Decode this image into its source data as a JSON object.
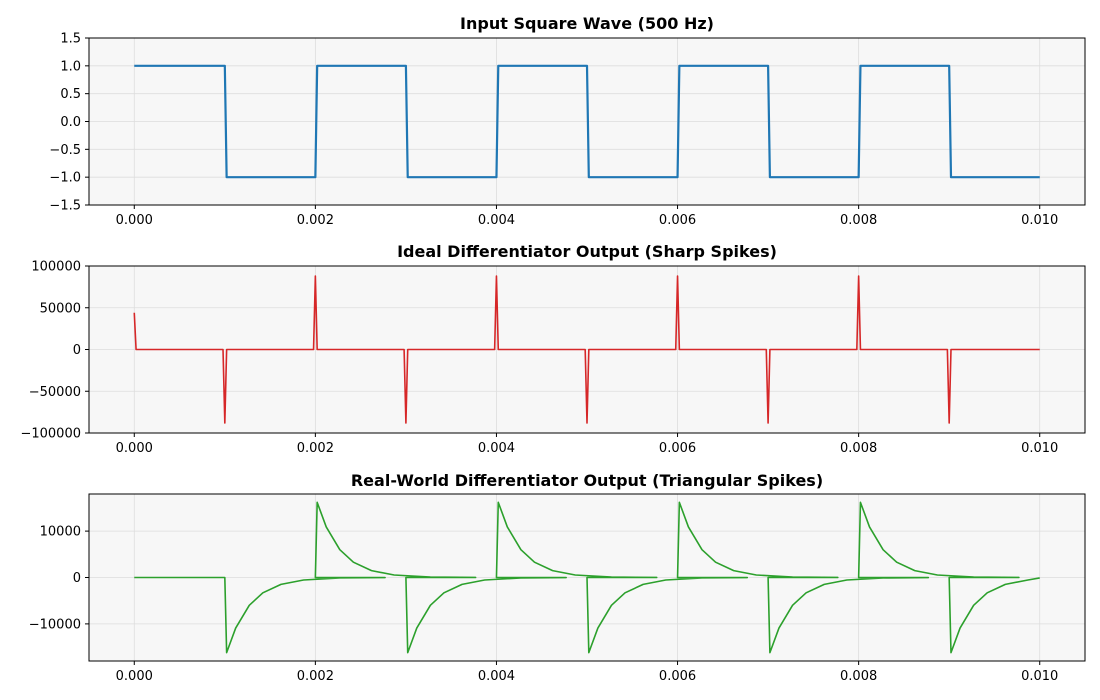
{
  "figure": {
    "background": "#ffffff",
    "plot_background": "#f7f7f7",
    "grid_color": "#dddddd"
  },
  "chart_data": [
    {
      "type": "line",
      "title": "Input Square Wave (500 Hz)",
      "xlabel": "",
      "ylabel": "",
      "color": "#1f77b4",
      "xlim": [
        -0.0005,
        0.0105
      ],
      "ylim": [
        -1.5,
        1.5
      ],
      "xticks": [
        0,
        0.002,
        0.004,
        0.006,
        0.008,
        0.01
      ],
      "xtick_labels": [
        "0.000",
        "0.002",
        "0.004",
        "0.006",
        "0.008",
        "0.010"
      ],
      "yticks": [
        1.5,
        1.0,
        0.5,
        0.0,
        -0.5,
        -1.0,
        -1.5
      ],
      "ytick_labels": [
        "1.5",
        "1.0",
        "0.5",
        "0.0",
        "−0.5",
        "−1.0",
        "−1.5"
      ],
      "grid": true,
      "series": [
        {
          "x": [
            0,
            0.001,
            0.00102,
            0.002,
            0.00202,
            0.003,
            0.00302,
            0.004,
            0.00402,
            0.005,
            0.00502,
            0.006,
            0.00602,
            0.007,
            0.00702,
            0.008,
            0.00802,
            0.009,
            0.00902,
            0.01
          ],
          "y": [
            1,
            1,
            -1,
            -1,
            1,
            1,
            -1,
            -1,
            1,
            1,
            -1,
            -1,
            1,
            1,
            -1,
            -1,
            1,
            1,
            -1,
            -1
          ]
        }
      ]
    },
    {
      "type": "line",
      "title": "Ideal Differentiator Output (Sharp Spikes)",
      "xlabel": "",
      "ylabel": "",
      "color": "#d62728",
      "xlim": [
        -0.0005,
        0.0105
      ],
      "ylim": [
        -100000,
        100000
      ],
      "xticks": [
        0,
        0.002,
        0.004,
        0.006,
        0.008,
        0.01
      ],
      "xtick_labels": [
        "0.000",
        "0.002",
        "0.004",
        "0.006",
        "0.008",
        "0.010"
      ],
      "yticks": [
        100000,
        50000,
        0,
        -50000,
        -100000
      ],
      "ytick_labels": [
        "100000",
        "50000",
        "0",
        "−50000",
        "−100000"
      ],
      "grid": true,
      "series": [
        {
          "x": [
            0,
            2e-05,
            0.00098,
            0.001,
            0.00102,
            0.00198,
            0.002,
            0.00202,
            0.00298,
            0.003,
            0.00302,
            0.00398,
            0.004,
            0.00402,
            0.00498,
            0.005,
            0.00502,
            0.00598,
            0.006,
            0.00602,
            0.00698,
            0.007,
            0.00702,
            0.00798,
            0.008,
            0.00802,
            0.00898,
            0.009,
            0.00902,
            0.01
          ],
          "y": [
            44000,
            0,
            0,
            -88000,
            0,
            0,
            88000,
            0,
            0,
            -88000,
            0,
            0,
            88000,
            0,
            0,
            -88000,
            0,
            0,
            88000,
            0,
            0,
            -88000,
            0,
            0,
            88000,
            0,
            0,
            -88000,
            0,
            0
          ]
        }
      ]
    },
    {
      "type": "line",
      "title": "Real-World Differentiator Output (Triangular Spikes)",
      "xlabel": "",
      "ylabel": "",
      "color": "#2ca02c",
      "xlim": [
        -0.0005,
        0.0105
      ],
      "ylim": [
        -18000,
        18000
      ],
      "xticks": [
        0,
        0.002,
        0.004,
        0.006,
        0.008,
        0.01
      ],
      "xtick_labels": [
        "0.000",
        "0.002",
        "0.004",
        "0.006",
        "0.008",
        "0.010"
      ],
      "yticks": [
        10000,
        0,
        -10000
      ],
      "ytick_labels": [
        "10000",
        "0",
        "−10000"
      ],
      "grid": true,
      "series": [
        {
          "x": [
            0,
            0.001,
            0.00102,
            0.00112,
            0.00127,
            0.00142,
            0.00162,
            0.00187,
            0.00227,
            0.00277,
            0.002,
            0.00202,
            0.00212,
            0.00227,
            0.00242,
            0.00262,
            0.00287,
            0.00327,
            0.00377,
            0.003,
            0.00302,
            0.00312,
            0.00327,
            0.00342,
            0.00362,
            0.00387,
            0.00427,
            0.00477,
            0.004,
            0.00402,
            0.00412,
            0.00427,
            0.00442,
            0.00462,
            0.00487,
            0.00527,
            0.00577,
            0.005,
            0.00502,
            0.00512,
            0.00527,
            0.00542,
            0.00562,
            0.00587,
            0.00627,
            0.00677,
            0.006,
            0.00602,
            0.00612,
            0.00627,
            0.00642,
            0.00662,
            0.00687,
            0.00727,
            0.00777,
            0.007,
            0.00702,
            0.00712,
            0.00727,
            0.00742,
            0.00762,
            0.00787,
            0.00827,
            0.00877,
            0.008,
            0.00802,
            0.00812,
            0.00827,
            0.00842,
            0.00862,
            0.00887,
            0.00927,
            0.00977,
            0.009,
            0.00902,
            0.00912,
            0.00927,
            0.00942,
            0.00962,
            0.00987,
            0.01
          ],
          "y": [
            0,
            0,
            -16200,
            -10900,
            -6000,
            -3300,
            -1480,
            -540,
            -100,
            -10,
            0,
            16200,
            10900,
            6000,
            3300,
            1480,
            540,
            100,
            10,
            0,
            -16200,
            -10900,
            -6000,
            -3300,
            -1480,
            -540,
            -100,
            -10,
            0,
            16200,
            10900,
            6000,
            3300,
            1480,
            540,
            100,
            10,
            0,
            -16200,
            -10900,
            -6000,
            -3300,
            -1480,
            -540,
            -100,
            -10,
            0,
            16200,
            10900,
            6000,
            3300,
            1480,
            540,
            100,
            10,
            0,
            -16200,
            -10900,
            -6000,
            -3300,
            -1480,
            -540,
            -100,
            -10,
            0,
            16200,
            10900,
            6000,
            3300,
            1480,
            540,
            100,
            10,
            0,
            -16200,
            -10900,
            -6000,
            -3300,
            -1480,
            -540,
            -100
          ]
        }
      ]
    }
  ]
}
